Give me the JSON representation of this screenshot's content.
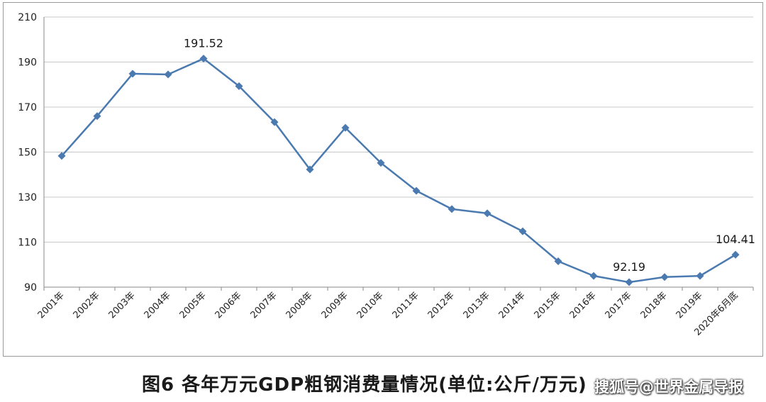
{
  "chart_data": {
    "type": "line",
    "categories": [
      "2001年",
      "2002年",
      "2003年",
      "2004年",
      "2005年",
      "2006年",
      "2007年",
      "2008年",
      "2009年",
      "2010年",
      "2011年",
      "2012年",
      "2013年",
      "2014年",
      "2015年",
      "2016年",
      "2017年",
      "2018年",
      "2019年",
      "2020年6月底"
    ],
    "series": [
      {
        "values": [
          148.3,
          166,
          184.8,
          184.5,
          191.52,
          179.3,
          163.3,
          142.3,
          160.8,
          145.2,
          132.8,
          124.7,
          122.8,
          114.8,
          101.5,
          95,
          92.19,
          94.5,
          95,
          104.41
        ],
        "color": "#4a7ab0"
      }
    ],
    "ylim": [
      90,
      210
    ],
    "yticks": [
      90,
      110,
      130,
      150,
      170,
      190,
      210
    ],
    "grid": true,
    "data_labels": [
      {
        "index": 4,
        "text": "191.52"
      },
      {
        "index": 16,
        "text": "92.19"
      },
      {
        "index": 19,
        "text": "104.41"
      }
    ],
    "title": "",
    "xlabel": "",
    "ylabel": ""
  },
  "caption": "图6 各年万元GDP粗钢消费量情况(单位:公斤/万元)",
  "watermark": "搜狐号@世界金属导报"
}
